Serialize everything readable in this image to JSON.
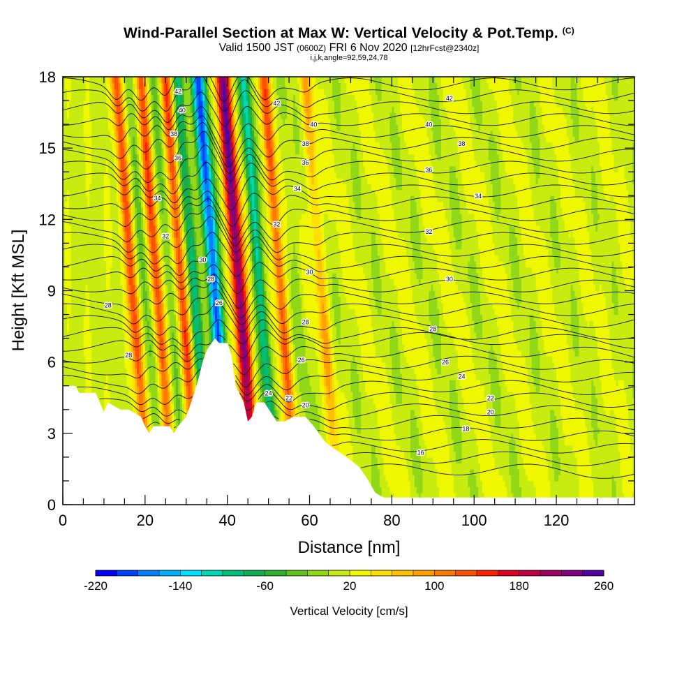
{
  "header": {
    "title": "Wind-Parallel Section at Max W: Vertical Velocity & Pot.Temp.",
    "title_unit": "(C)",
    "subtitle_valid": "Valid 1500 JST",
    "subtitle_utc": "(0600Z)",
    "subtitle_date": "FRI 6 Nov 2020",
    "subtitle_fcst": "[12hrFcst@2340z]",
    "params": "i,j,k,angle=92,59,24,78"
  },
  "chart_data": {
    "type": "heatmap",
    "xlabel": "Distance [nm]",
    "ylabel": "Height [Kft MSL]",
    "xlim": [
      0,
      139
    ],
    "ylim": [
      0,
      18
    ],
    "x_ticks": [
      0,
      20,
      40,
      60,
      80,
      100,
      120
    ],
    "y_ticks": [
      0,
      3,
      6,
      9,
      12,
      15,
      18
    ],
    "colorbar": {
      "label": "Vertical Velocity [cm/s]",
      "min": -220,
      "max": 260,
      "step": 20,
      "tick_labels": [
        "-220",
        "-140",
        "-60",
        "20",
        "100",
        "180",
        "260"
      ],
      "colors": [
        "#0000ff",
        "#0040ff",
        "#0080ff",
        "#00b0ff",
        "#00e0ff",
        "#00d8b0",
        "#00c078",
        "#10b050",
        "#30b030",
        "#60c020",
        "#90d818",
        "#c8ec10",
        "#f0f800",
        "#ffe000",
        "#ffc000",
        "#ffa000",
        "#ff7800",
        "#ff5000",
        "#ff2000",
        "#e00020",
        "#c00040",
        "#a00060",
        "#800080",
        "#5000a0"
      ]
    },
    "vertical_velocity_features": [
      {
        "x": 17,
        "value": 120
      },
      {
        "x": 20,
        "value": -40
      },
      {
        "x": 23,
        "value": 120
      },
      {
        "x": 26,
        "value": -40
      },
      {
        "x": 29,
        "value": 120
      },
      {
        "x": 32,
        "value": -100
      },
      {
        "x": 37,
        "value": -200
      },
      {
        "x": 43,
        "value": 220
      },
      {
        "x": 48,
        "value": -120
      },
      {
        "x": 53,
        "value": 110
      },
      {
        "x": 57,
        "value": -20
      },
      {
        "x": 63,
        "value": 60
      }
    ],
    "terrain_height_kft": [
      {
        "x": 0,
        "h": 5.0
      },
      {
        "x": 3,
        "h": 5.0
      },
      {
        "x": 4,
        "h": 4.7
      },
      {
        "x": 8,
        "h": 4.7
      },
      {
        "x": 9,
        "h": 4.3
      },
      {
        "x": 10,
        "h": 3.9
      },
      {
        "x": 11,
        "h": 4.3
      },
      {
        "x": 14,
        "h": 4.0
      },
      {
        "x": 16,
        "h": 4.0
      },
      {
        "x": 19,
        "h": 3.7
      },
      {
        "x": 20,
        "h": 3.3
      },
      {
        "x": 21,
        "h": 3.0
      },
      {
        "x": 22,
        "h": 3.3
      },
      {
        "x": 26,
        "h": 3.3
      },
      {
        "x": 27,
        "h": 3.0
      },
      {
        "x": 28,
        "h": 3.3
      },
      {
        "x": 30,
        "h": 3.7
      },
      {
        "x": 32,
        "h": 4.7
      },
      {
        "x": 33,
        "h": 5.3
      },
      {
        "x": 34,
        "h": 6.0
      },
      {
        "x": 35,
        "h": 6.5
      },
      {
        "x": 37,
        "h": 7.0
      },
      {
        "x": 38,
        "h": 6.8
      },
      {
        "x": 40,
        "h": 6.8
      },
      {
        "x": 41,
        "h": 6.3
      },
      {
        "x": 42,
        "h": 5.0
      },
      {
        "x": 44,
        "h": 4.3
      },
      {
        "x": 45,
        "h": 3.5
      },
      {
        "x": 46,
        "h": 3.7
      },
      {
        "x": 47,
        "h": 4.3
      },
      {
        "x": 49,
        "h": 4.3
      },
      {
        "x": 52,
        "h": 3.5
      },
      {
        "x": 54,
        "h": 3.5
      },
      {
        "x": 56,
        "h": 3.7
      },
      {
        "x": 59,
        "h": 3.7
      },
      {
        "x": 61,
        "h": 3.3
      },
      {
        "x": 64,
        "h": 2.6
      },
      {
        "x": 69,
        "h": 2.0
      },
      {
        "x": 72,
        "h": 1.6
      },
      {
        "x": 74,
        "h": 1.1
      },
      {
        "x": 76,
        "h": 0.5
      },
      {
        "x": 78,
        "h": 0.3
      },
      {
        "x": 139,
        "h": 0.3
      }
    ],
    "theta_contour_labels": [
      {
        "x": 28,
        "y": 17.4,
        "label": "42"
      },
      {
        "x": 29,
        "y": 16.6,
        "label": "40"
      },
      {
        "x": 27,
        "y": 15.6,
        "label": "38"
      },
      {
        "x": 28,
        "y": 14.6,
        "label": "36"
      },
      {
        "x": 23,
        "y": 12.9,
        "label": "34"
      },
      {
        "x": 25,
        "y": 11.3,
        "label": "32"
      },
      {
        "x": 34,
        "y": 10.3,
        "label": "30"
      },
      {
        "x": 36,
        "y": 9.5,
        "label": "28"
      },
      {
        "x": 38,
        "y": 8.5,
        "label": "26"
      },
      {
        "x": 11,
        "y": 8.4,
        "label": "28"
      },
      {
        "x": 16,
        "y": 6.3,
        "label": "28"
      },
      {
        "x": 52,
        "y": 16.9,
        "label": "42"
      },
      {
        "x": 61,
        "y": 16.0,
        "label": "40"
      },
      {
        "x": 59,
        "y": 15.2,
        "label": "38"
      },
      {
        "x": 59,
        "y": 14.4,
        "label": "36"
      },
      {
        "x": 57,
        "y": 13.3,
        "label": "34"
      },
      {
        "x": 52,
        "y": 11.8,
        "label": "32"
      },
      {
        "x": 60,
        "y": 9.8,
        "label": "30"
      },
      {
        "x": 59,
        "y": 7.7,
        "label": "28"
      },
      {
        "x": 58,
        "y": 6.1,
        "label": "26"
      },
      {
        "x": 50,
        "y": 4.7,
        "label": "24"
      },
      {
        "x": 55,
        "y": 4.5,
        "label": "22"
      },
      {
        "x": 59,
        "y": 4.2,
        "label": "20"
      },
      {
        "x": 94,
        "y": 17.1,
        "label": "42"
      },
      {
        "x": 89,
        "y": 16.0,
        "label": "40"
      },
      {
        "x": 97,
        "y": 15.2,
        "label": "38"
      },
      {
        "x": 89,
        "y": 14.1,
        "label": "36"
      },
      {
        "x": 101,
        "y": 13.0,
        "label": "34"
      },
      {
        "x": 89,
        "y": 11.5,
        "label": "32"
      },
      {
        "x": 94,
        "y": 9.5,
        "label": "30"
      },
      {
        "x": 90,
        "y": 7.4,
        "label": "28"
      },
      {
        "x": 93,
        "y": 6.0,
        "label": "26"
      },
      {
        "x": 97,
        "y": 5.4,
        "label": "24"
      },
      {
        "x": 104,
        "y": 4.5,
        "label": "22"
      },
      {
        "x": 104,
        "y": 3.9,
        "label": "20"
      },
      {
        "x": 98,
        "y": 3.2,
        "label": "18"
      },
      {
        "x": 87,
        "y": 2.2,
        "label": "16"
      }
    ]
  }
}
